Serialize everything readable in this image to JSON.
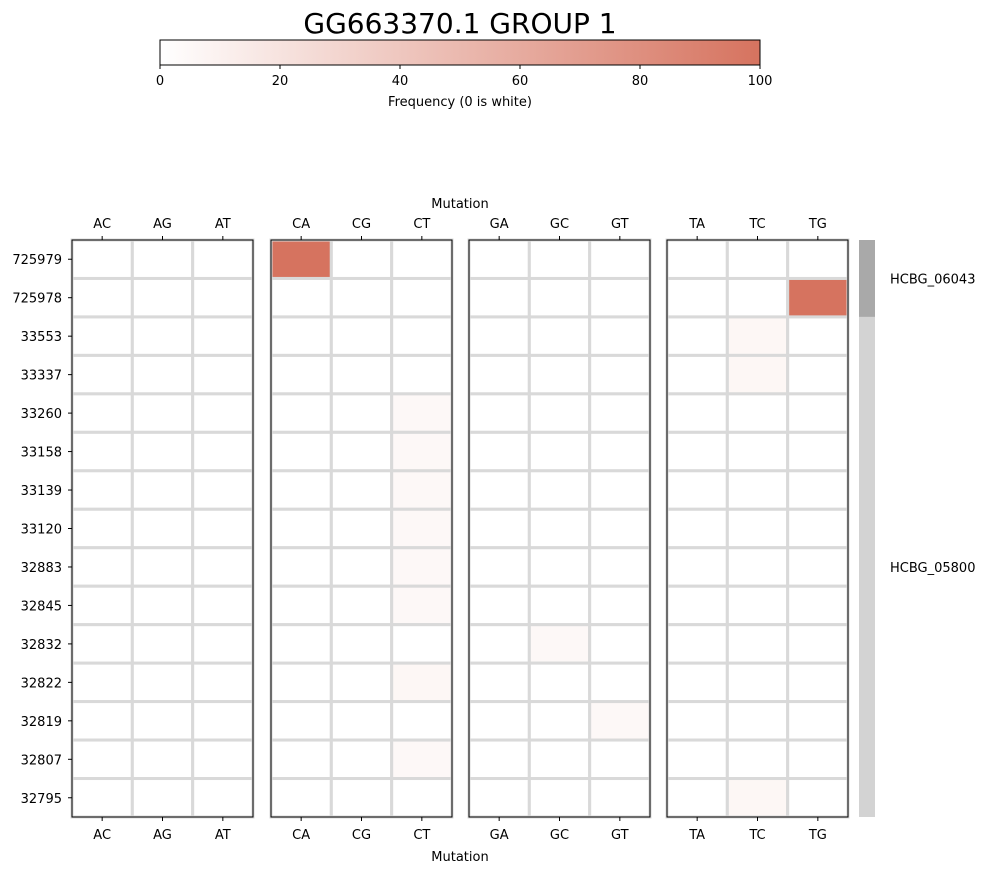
{
  "chart_data": {
    "type": "heatmap",
    "title": "GG663370.1 GROUP 1",
    "xlabel": "Mutation",
    "colorbar": {
      "label": "Frequency (0 is white)",
      "ticks": [
        0,
        20,
        40,
        60,
        80,
        100
      ],
      "range": [
        0,
        100
      ],
      "color_low": "#ffffff",
      "color_high": "#d6735f"
    },
    "panels": [
      [
        "AC",
        "AG",
        "AT"
      ],
      [
        "CA",
        "CG",
        "CT"
      ],
      [
        "GA",
        "GC",
        "GT"
      ],
      [
        "TA",
        "TC",
        "TG"
      ]
    ],
    "rows": [
      "725979",
      "725978",
      "33553",
      "33337",
      "33260",
      "33158",
      "33139",
      "33120",
      "32883",
      "32845",
      "32832",
      "32822",
      "32819",
      "32807",
      "32795"
    ],
    "values": [
      {
        "row": "725979",
        "mutation": "CA",
        "value": 100
      },
      {
        "row": "725978",
        "mutation": "TG",
        "value": 100
      },
      {
        "row": "33553",
        "mutation": "TC",
        "value": 6
      },
      {
        "row": "33337",
        "mutation": "TC",
        "value": 6
      },
      {
        "row": "33260",
        "mutation": "CT",
        "value": 5
      },
      {
        "row": "33158",
        "mutation": "CT",
        "value": 5
      },
      {
        "row": "33139",
        "mutation": "CT",
        "value": 5
      },
      {
        "row": "33120",
        "mutation": "CT",
        "value": 5
      },
      {
        "row": "32883",
        "mutation": "CT",
        "value": 5
      },
      {
        "row": "32845",
        "mutation": "CT",
        "value": 5
      },
      {
        "row": "32832",
        "mutation": "GC",
        "value": 5
      },
      {
        "row": "32822",
        "mutation": "CT",
        "value": 6
      },
      {
        "row": "32819",
        "mutation": "GT",
        "value": 5
      },
      {
        "row": "32807",
        "mutation": "CT",
        "value": 5
      },
      {
        "row": "32795",
        "mutation": "TC",
        "value": 6
      }
    ],
    "groups": [
      {
        "label": "HCBG_06043",
        "rows": [
          "725979",
          "725978"
        ],
        "color": "#a9a9a9"
      },
      {
        "label": "HCBG_05800",
        "rows": [
          "33553",
          "33337",
          "33260",
          "33158",
          "33139",
          "33120",
          "32883",
          "32845",
          "32832",
          "32822",
          "32819",
          "32807",
          "32795"
        ],
        "color": "#d3d3d3"
      }
    ],
    "grid_color": "#d9d9d9"
  }
}
